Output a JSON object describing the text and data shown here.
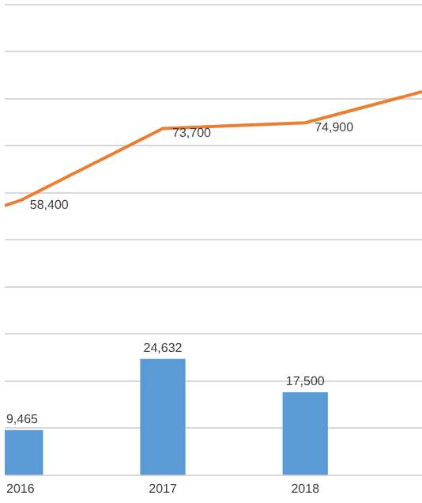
{
  "chart_data": {
    "type": "bar",
    "xlim": [
      2015.89,
      2018.82
    ],
    "xticks": [
      2016,
      2017,
      2018
    ],
    "ylim": [
      0,
      100000
    ],
    "tick_labels": "x",
    "grid": "y",
    "legend": false,
    "marker": "none",
    "series": [
      {
        "color": "#5b9bd5",
        "x": [
          2016,
          2017,
          2018
        ],
        "values": [
          9465,
          24632,
          17500
        ],
        "value_labels": [
          "9,465",
          "24,632",
          "17,500"
        ]
      },
      {
        "type": "line",
        "color": "#ed7d31",
        "x": [
          2015.89,
          2016,
          2017,
          2018,
          2018.82
        ],
        "values": [
          57300,
          58400,
          73700,
          74900,
          81500
        ],
        "value_labels": [
          null,
          "58,400",
          "73,700",
          "74,900",
          null
        ]
      }
    ]
  }
}
